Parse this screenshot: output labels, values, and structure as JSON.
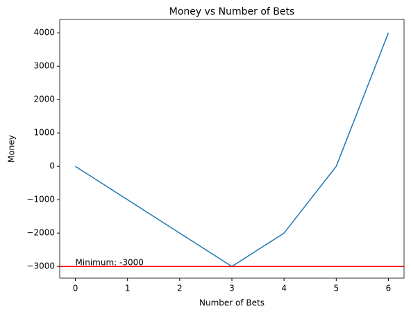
{
  "chart_data": {
    "type": "line",
    "title": "Money vs Number of Bets",
    "x_label": "Number of Bets",
    "y_label": "Money",
    "x": [
      0,
      1,
      2,
      3,
      4,
      5,
      6
    ],
    "series": [
      {
        "name": "Money",
        "color": "#1f77b4",
        "values": [
          0,
          -1000,
          -2000,
          -3000,
          -2000,
          0,
          4000
        ]
      }
    ],
    "hline": {
      "value": -3000,
      "color": "#ff0000",
      "label": "Minimum: -3000"
    },
    "xlim": [
      -0.3,
      6.3
    ],
    "ylim": [
      -3350,
      4400
    ],
    "xticks": [
      0,
      1,
      2,
      3,
      4,
      5,
      6
    ],
    "yticks": [
      {
        "value": -3000,
        "label": "−3000"
      },
      {
        "value": -2000,
        "label": "−2000"
      },
      {
        "value": -1000,
        "label": "−1000"
      },
      0,
      1000,
      2000,
      3000,
      4000
    ],
    "grid": false
  }
}
